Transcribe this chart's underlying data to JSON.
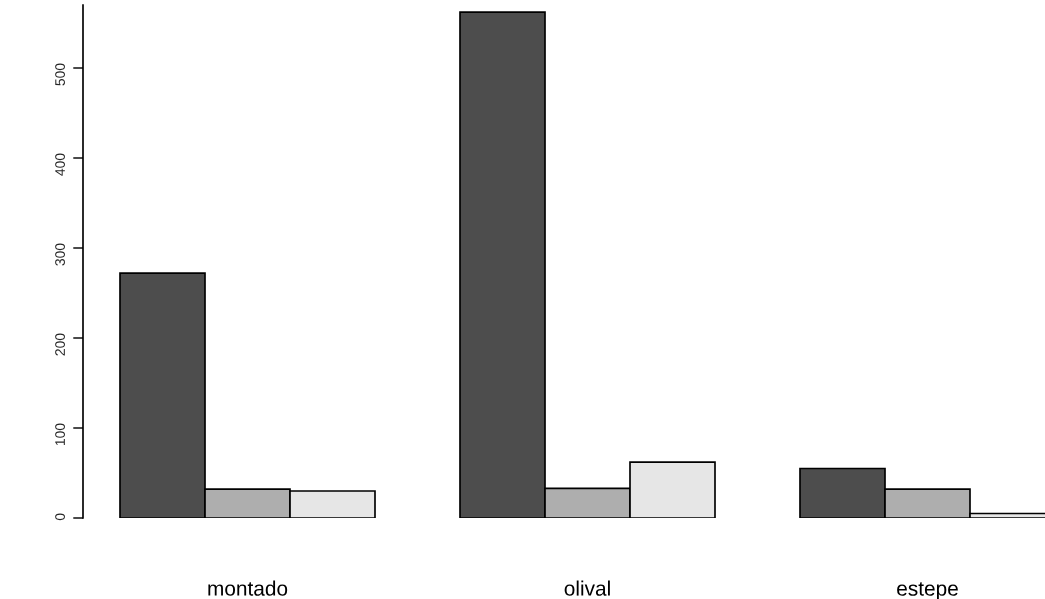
{
  "chart_data": {
    "type": "bar",
    "categories": [
      "montado",
      "olival",
      "estepe"
    ],
    "series": [
      {
        "color": "#4d4d4d",
        "values": [
          272,
          562,
          55
        ]
      },
      {
        "color": "#aeaeae",
        "values": [
          32,
          33,
          32
        ]
      },
      {
        "color": "#e6e6e6",
        "values": [
          30,
          62,
          5
        ]
      }
    ],
    "ylim": [
      0,
      570
    ],
    "yticks": [
      0,
      100,
      200,
      300,
      400,
      500
    ],
    "grid": false
  }
}
